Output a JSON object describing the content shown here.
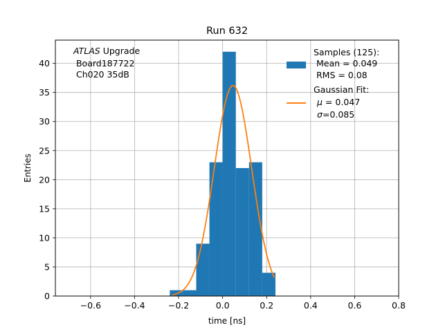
{
  "chart_data": {
    "type": "bar",
    "title": "Run 632",
    "xlabel": "time [ns]",
    "ylabel": "Entries",
    "xlim": [
      -0.76,
      0.8
    ],
    "ylim": [
      0,
      44
    ],
    "xticks": [
      -0.6,
      -0.4,
      -0.2,
      0.0,
      0.2,
      0.4,
      0.6,
      0.8
    ],
    "xtick_labels": [
      "−0.6",
      "−0.4",
      "−0.2",
      "0.0",
      "0.2",
      "0.4",
      "0.6",
      "0.8"
    ],
    "yticks": [
      0,
      5,
      10,
      15,
      20,
      25,
      30,
      35,
      40
    ],
    "yticks_labels": [
      "0",
      "5",
      "10",
      "15",
      "20",
      "25",
      "30",
      "35",
      "40"
    ],
    "grid": true,
    "histogram": {
      "name": "Samples (125):",
      "color": "#1f77b4",
      "bin_edges": [
        -0.24,
        -0.18,
        -0.12,
        -0.06,
        0.0,
        0.06,
        0.12,
        0.18,
        0.24
      ],
      "counts": [
        1,
        1,
        9,
        23,
        42,
        22,
        23,
        4
      ]
    },
    "fit": {
      "name": "Gaussian Fit:",
      "color": "#ff7f0e",
      "mu": 0.047,
      "sigma": 0.085,
      "amplitude": 36.2,
      "x_range": [
        -0.23,
        0.235
      ]
    },
    "legend": {
      "placement": "top-right",
      "hist_lines": [
        "Samples (125):",
        " Mean = 0.049",
        " RMS = 0.08"
      ],
      "fit_lines": [
        "Gaussian Fit:",
        " μ = 0.047",
        " σ=0.085"
      ]
    },
    "annotation": {
      "lines": [
        "ATLAS Upgrade",
        " Board187722",
        " Ch020 35dB"
      ]
    }
  }
}
